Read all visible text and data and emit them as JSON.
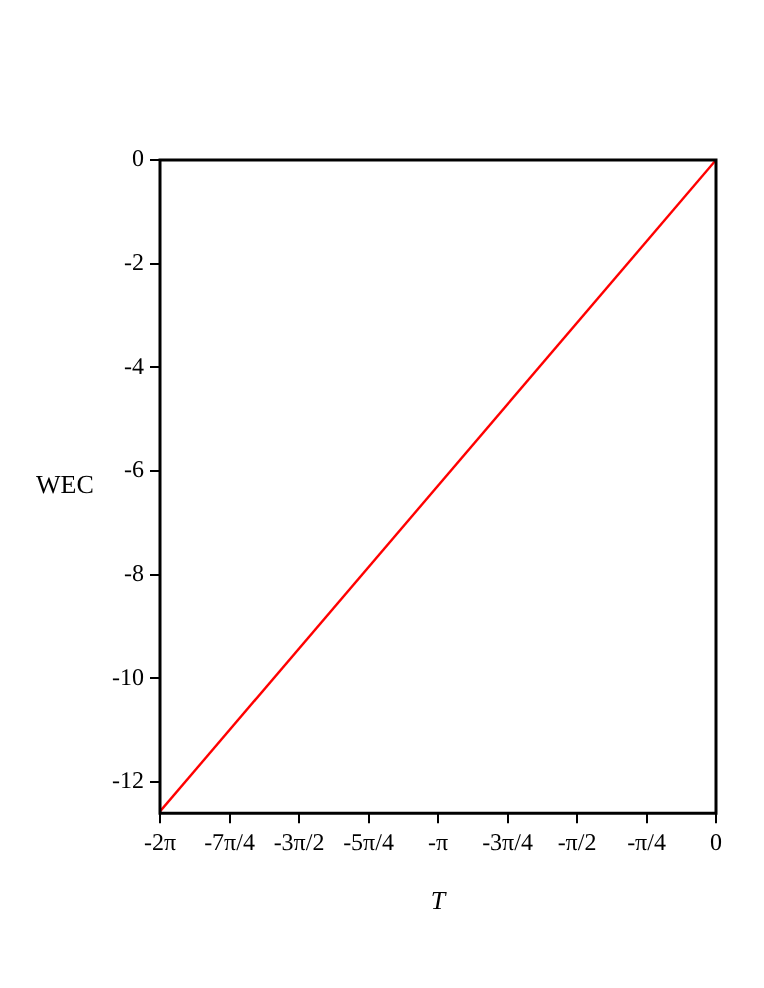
{
  "chart_data": {
    "type": "line",
    "xlabel": "T",
    "ylabel": "WEC",
    "series": [
      {
        "color": "#ff0000",
        "x": [
          -6.2832,
          0
        ],
        "values": [
          -12.566,
          0
        ]
      }
    ],
    "xlim": [
      -6.2832,
      0
    ],
    "xticks": [
      {
        "value": -6.2832,
        "label": "-2π"
      },
      {
        "value": -5.4978,
        "label": "-7π/4"
      },
      {
        "value": -4.7124,
        "label": "-3π/2"
      },
      {
        "value": -3.927,
        "label": "-5π/4"
      },
      {
        "value": -3.1416,
        "label": "-π"
      },
      {
        "value": -2.3562,
        "label": "-3π/4"
      },
      {
        "value": -1.5708,
        "label": "-π/2"
      },
      {
        "value": -0.7854,
        "label": "-π/4"
      },
      0
    ],
    "ylim": [
      -12.6,
      0
    ],
    "yticks": [
      -12,
      -10,
      -8,
      -6,
      -4,
      -2,
      0
    ],
    "grid": false,
    "legend": false,
    "marker": "none",
    "line_style": "solid"
  }
}
